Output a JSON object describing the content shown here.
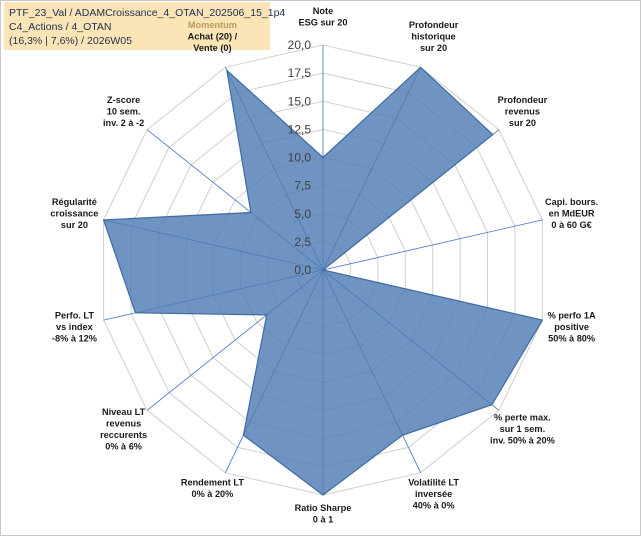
{
  "title_lines": [
    "PTF_23_Val / ADAMCroissance_4_OTAN_202506_15_1p4",
    "C4_Actions / 4_OTAN",
    "(16,3% | 7,6%) / 2026W05"
  ],
  "colors": {
    "fill": "#4f7cb3",
    "stroke": "#3f6ba3",
    "grid": "#cfcfcf",
    "spoke": "#4472c4",
    "title_bg": "#fbe5b6",
    "dim_label": "#b89a5a"
  },
  "chart_data": {
    "type": "radar",
    "rmin": 0,
    "rmax": 20,
    "tick_step": 2.5,
    "tick_labels": [
      "0,0",
      "2,5",
      "5,0",
      "7,5",
      "10,0",
      "12,5",
      "15,0",
      "17,5",
      "20,0"
    ],
    "axes": [
      {
        "label": [
          "Note",
          "ESG sur 20"
        ],
        "value": 10
      },
      {
        "label": [
          "Profondeur",
          "historique",
          "sur 20"
        ],
        "value": 20
      },
      {
        "label": [
          "Profondeur",
          "revenus",
          "sur 20"
        ],
        "value": 19.3
      },
      {
        "label": [
          "Capi. bours.",
          "en MdEUR",
          "0 à 60 G€"
        ],
        "value": 0
      },
      {
        "label": [
          "% perfo 1A",
          "positive",
          "50% à 80%"
        ],
        "value": 20
      },
      {
        "label": [
          "% perte max.",
          "sur 1 sem.",
          "inv. 50% à 20%"
        ],
        "value": 19.2
      },
      {
        "label": [
          "Volatilité LT",
          "inversée",
          "40% à 0%"
        ],
        "value": 16.3
      },
      {
        "label": [
          "Ratio Sharpe",
          "0 à 1"
        ],
        "value": 20
      },
      {
        "label": [
          "Rendement LT",
          "0% à 20%"
        ],
        "value": 16.3
      },
      {
        "label": [
          "Niveau LT",
          "revenus",
          "reccurents",
          "0% à 6%"
        ],
        "value": 6.4
      },
      {
        "label": [
          "Perfo. LT",
          "vs index",
          "-8% à 12%"
        ],
        "value": 17.1
      },
      {
        "label": [
          "Régularité",
          "croissance",
          "sur 20"
        ],
        "value": 20
      },
      {
        "label": [
          "Z-score",
          "10 sem.",
          "inv. 2 à -2"
        ],
        "value": 8.2
      },
      {
        "label": [
          "Momentum",
          "Achat (20) /",
          "Vente (0)"
        ],
        "value": 19.7,
        "dim_first_line": true
      }
    ]
  }
}
